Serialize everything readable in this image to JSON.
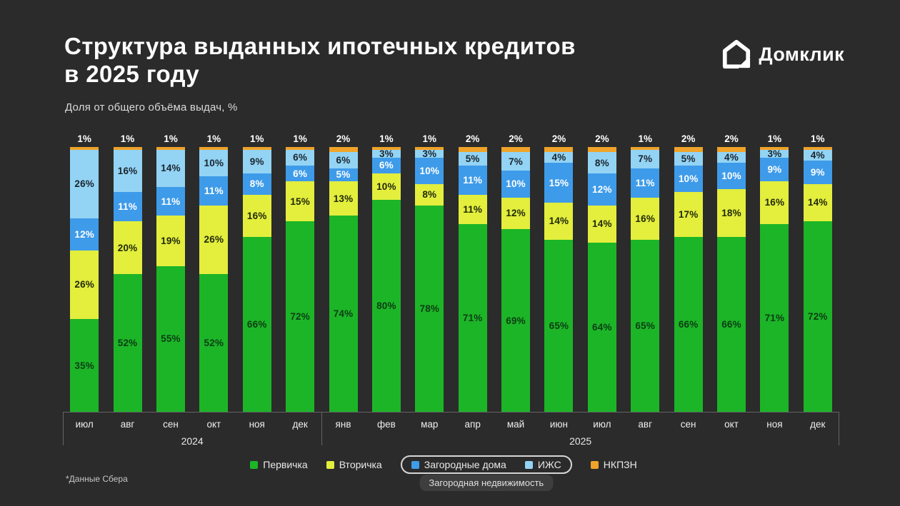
{
  "header": {
    "title_line1": "Структура выданных ипотечных кредитов",
    "title_line2": "в 2025 году",
    "subtitle": "Доля от общего объёма выдач, %",
    "logo_text": "Домклик"
  },
  "footer": {
    "note": "*Данные Сбера"
  },
  "colors": {
    "background": "#2B2B2B",
    "axis_line": "#646464",
    "primary_green": "#1CB527",
    "secondary_yellow": "#E3EE3D",
    "country_house_blue": "#3E9BE9",
    "izhs_light_blue": "#93D3F4",
    "nkpzn_orange": "#EFA32A"
  },
  "legend": {
    "items": [
      {
        "label": "Первичка",
        "color": "#1CB527"
      },
      {
        "label": "Вторичка",
        "color": "#E3EE3D"
      },
      {
        "label": "Загородные дома",
        "color": "#3E9BE9"
      },
      {
        "label": "ИЖС",
        "color": "#93D3F4"
      },
      {
        "label": "НКПЗН",
        "color": "#EFA32A"
      }
    ],
    "group_label": "Загородная недвижимость"
  },
  "chart_data": {
    "type": "bar",
    "stacked": true,
    "unit": "%",
    "title": "Структура выданных ипотечных кредитов в 2025 году",
    "ylabel": "Доля от общего объёма выдач, %",
    "ylim": [
      0,
      100
    ],
    "grid": false,
    "legend_position": "bottom",
    "categories": [
      "июл",
      "авг",
      "сен",
      "окт",
      "ноя",
      "дек",
      "янв",
      "фев",
      "мар",
      "апр",
      "май",
      "июн",
      "июл",
      "авг",
      "сен",
      "окт",
      "ноя",
      "дек"
    ],
    "year_groups": [
      {
        "label": "2024",
        "start": 0,
        "count": 6
      },
      {
        "label": "2025",
        "start": 6,
        "count": 12
      }
    ],
    "series": [
      {
        "name": "Первичка",
        "color": "#1CB527",
        "label_color": "#0C3D14",
        "values": [
          35,
          52,
          55,
          52,
          66,
          72,
          74,
          80,
          78,
          71,
          69,
          65,
          64,
          65,
          66,
          66,
          71,
          72
        ]
      },
      {
        "name": "Вторичка",
        "color": "#E3EE3D",
        "label_color": "#20290A",
        "values": [
          26,
          20,
          19,
          26,
          16,
          15,
          13,
          10,
          8,
          11,
          12,
          14,
          14,
          16,
          17,
          18,
          16,
          14
        ]
      },
      {
        "name": "Загородные дома",
        "color": "#3E9BE9",
        "label_color": "#FFFFFF",
        "values": [
          12,
          11,
          11,
          11,
          8,
          6,
          5,
          6,
          10,
          11,
          10,
          15,
          12,
          11,
          10,
          10,
          9,
          9
        ]
      },
      {
        "name": "ИЖС",
        "color": "#93D3F4",
        "label_color": "#19252E",
        "values": [
          26,
          16,
          14,
          10,
          9,
          6,
          6,
          3,
          3,
          5,
          7,
          4,
          8,
          7,
          5,
          4,
          3,
          4
        ]
      },
      {
        "name": "НКПЗН",
        "color": "#EFA32A",
        "label_color": "#FFFFFF",
        "label_position": "above",
        "values": [
          1,
          1,
          1,
          1,
          1,
          1,
          2,
          1,
          1,
          2,
          2,
          2,
          2,
          1,
          2,
          2,
          1,
          1
        ]
      }
    ]
  }
}
